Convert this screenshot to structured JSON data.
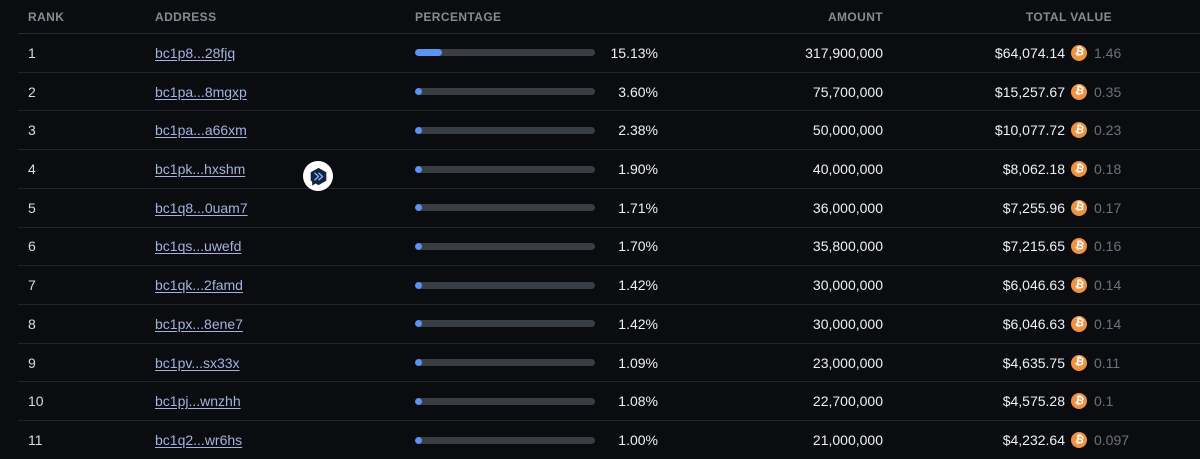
{
  "table": {
    "columns": [
      {
        "key": "rank",
        "label": "RANK"
      },
      {
        "key": "address",
        "label": "ADDRESS"
      },
      {
        "key": "percentage",
        "label": "PERCENTAGE"
      },
      {
        "key": "amount",
        "label": "AMOUNT"
      },
      {
        "key": "total_value",
        "label": "TOTAL VALUE"
      }
    ],
    "rows": [
      {
        "rank": "1",
        "address": "bc1p8...28fjq",
        "percentage": "15.13%",
        "percent_value": 15.13,
        "amount": "317,900,000",
        "usd_value": "$64,074.14",
        "btc_value": "1.46"
      },
      {
        "rank": "2",
        "address": "bc1pa...8mgxp",
        "percentage": "3.60%",
        "percent_value": 3.6,
        "amount": "75,700,000",
        "usd_value": "$15,257.67",
        "btc_value": "0.35"
      },
      {
        "rank": "3",
        "address": "bc1pa...a66xm",
        "percentage": "2.38%",
        "percent_value": 2.38,
        "amount": "50,000,000",
        "usd_value": "$10,077.72",
        "btc_value": "0.23"
      },
      {
        "rank": "4",
        "address": "bc1pk...hxshm",
        "percentage": "1.90%",
        "percent_value": 1.9,
        "amount": "40,000,000",
        "usd_value": "$8,062.18",
        "btc_value": "0.18"
      },
      {
        "rank": "5",
        "address": "bc1q8...0uam7",
        "percentage": "1.71%",
        "percent_value": 1.71,
        "amount": "36,000,000",
        "usd_value": "$7,255.96",
        "btc_value": "0.17"
      },
      {
        "rank": "6",
        "address": "bc1qs...uwefd",
        "percentage": "1.70%",
        "percent_value": 1.7,
        "amount": "35,800,000",
        "usd_value": "$7,215.65",
        "btc_value": "0.16"
      },
      {
        "rank": "7",
        "address": "bc1qk...2famd",
        "percentage": "1.42%",
        "percent_value": 1.42,
        "amount": "30,000,000",
        "usd_value": "$6,046.63",
        "btc_value": "0.14"
      },
      {
        "rank": "8",
        "address": "bc1px...8ene7",
        "percentage": "1.42%",
        "percent_value": 1.42,
        "amount": "30,000,000",
        "usd_value": "$6,046.63",
        "btc_value": "0.14"
      },
      {
        "rank": "9",
        "address": "bc1pv...sx33x",
        "percentage": "1.09%",
        "percent_value": 1.09,
        "amount": "23,000,000",
        "usd_value": "$4,635.75",
        "btc_value": "0.11"
      },
      {
        "rank": "10",
        "address": "bc1pj...wnzhh",
        "percentage": "1.08%",
        "percent_value": 1.08,
        "amount": "22,700,000",
        "usd_value": "$4,575.28",
        "btc_value": "0.1"
      },
      {
        "rank": "11",
        "address": "bc1q2...wr6hs",
        "percentage": "1.00%",
        "percent_value": 1.0,
        "amount": "21,000,000",
        "usd_value": "$4,232.64",
        "btc_value": "0.097"
      }
    ]
  },
  "icons": {
    "bitcoin_symbol": "₿",
    "bitcoin": "bitcoin-icon",
    "floating_badge": "chat-share-badge-icon"
  },
  "colors": {
    "background": "#0a0c0f",
    "row_divider": "#21252b",
    "header_text": "#868b93",
    "address_link_blue": "#a4b2de",
    "bar_track_gray": "#393d44",
    "bar_fill_blue": "#5b93f2",
    "bitcoin_orange": "#ef9242",
    "btc_amount_gray": "#6d727c",
    "primary_text": "#eef0f3",
    "badge_bubble_navy": "#15233c",
    "badge_glyph_blue": "#7db0f5"
  }
}
